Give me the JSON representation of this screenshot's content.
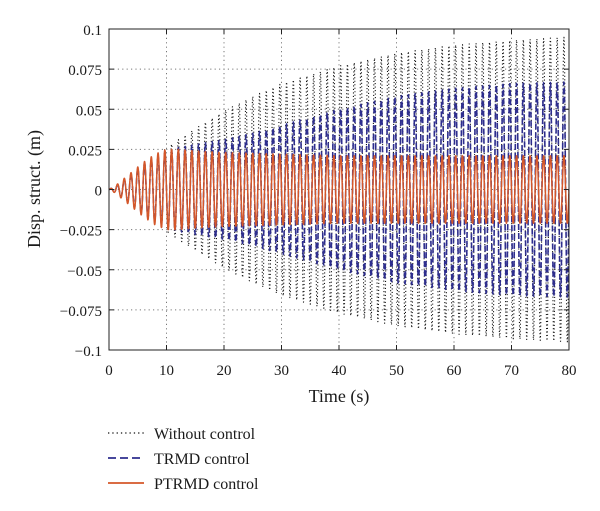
{
  "chart_data": {
    "type": "line",
    "title": "",
    "xlabel": "Time (s)",
    "ylabel": "Disp. struct. (m)",
    "xlim": [
      0,
      80
    ],
    "ylim": [
      -0.1,
      0.1
    ],
    "x_ticks": [
      0,
      10,
      20,
      30,
      40,
      50,
      60,
      70,
      80
    ],
    "x_tick_labels": [
      "0",
      "10",
      "20",
      "30",
      "40",
      "50",
      "60",
      "70",
      "80"
    ],
    "y_ticks": [
      -0.1,
      -0.075,
      -0.05,
      -0.025,
      0,
      0.025,
      0.05,
      0.075,
      0.1
    ],
    "y_tick_labels": [
      "−0.1",
      "−0.075",
      "−0.05",
      "−0.025",
      "0",
      "0.025",
      "0.05",
      "0.075",
      "0.1"
    ],
    "grid": true,
    "legend_position": "bottom-left, below plot",
    "signal": {
      "kind": "oscillation",
      "cycles_per_second": 0.85
    },
    "series": [
      {
        "name": "Without control",
        "color": "#111111",
        "line_style": "dotted",
        "envelope": {
          "t": [
            0,
            1,
            2,
            4,
            6,
            8,
            10,
            12,
            15,
            20,
            25,
            30,
            40,
            50,
            60,
            70,
            80
          ],
          "amplitude": [
            0,
            0.002,
            0.004,
            0.01,
            0.016,
            0.021,
            0.026,
            0.031,
            0.038,
            0.049,
            0.058,
            0.066,
            0.077,
            0.085,
            0.09,
            0.093,
            0.095
          ]
        }
      },
      {
        "name": "TRMD control",
        "color": "#2e2e8e",
        "line_style": "dashed",
        "envelope": {
          "t": [
            0,
            1,
            2,
            4,
            6,
            8,
            10,
            12,
            15,
            20,
            25,
            30,
            40,
            50,
            60,
            70,
            80
          ],
          "amplitude": [
            0,
            0.002,
            0.004,
            0.01,
            0.016,
            0.02,
            0.023,
            0.026,
            0.028,
            0.031,
            0.035,
            0.04,
            0.05,
            0.058,
            0.063,
            0.066,
            0.067
          ]
        }
      },
      {
        "name": "PTRMD control",
        "color": "#d4572a",
        "line_style": "solid",
        "envelope": {
          "t": [
            0,
            1,
            2,
            4,
            6,
            8,
            10,
            12,
            15,
            20,
            30,
            40,
            50,
            60,
            70,
            80
          ],
          "amplitude": [
            0,
            0.002,
            0.005,
            0.011,
            0.017,
            0.022,
            0.025,
            0.025,
            0.024,
            0.023,
            0.022,
            0.021,
            0.021,
            0.021,
            0.021,
            0.021
          ]
        }
      }
    ]
  }
}
